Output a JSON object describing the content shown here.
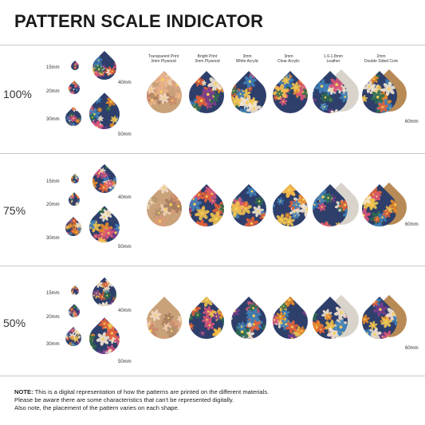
{
  "title": "PATTERN SCALE INDICATOR",
  "rows": [
    {
      "scale": "100%",
      "sizes": [
        "15mm",
        "20mm",
        "30mm",
        "40mm",
        "50mm"
      ],
      "big_size": "60mm"
    },
    {
      "scale": "75%",
      "sizes": [
        "15mm",
        "20mm",
        "30mm",
        "40mm",
        "50mm"
      ],
      "big_size": "60mm"
    },
    {
      "scale": "50%",
      "sizes": [
        "15mm",
        "20mm",
        "30mm",
        "40mm",
        "50mm"
      ],
      "big_size": "60mm"
    }
  ],
  "materials": [
    {
      "line1": "Transparent Print",
      "line2": "3mm Plywood"
    },
    {
      "line1": "Bright Print",
      "line2": "3mm Plywood"
    },
    {
      "line1": "3mm",
      "line2": "White Acrylic"
    },
    {
      "line1": "3mm",
      "line2": "Clear Acrylic"
    },
    {
      "line1": "1.6-1.8mm",
      "line2": "Leather"
    },
    {
      "line1": "2mm",
      "line2": "Double Sided Cork"
    }
  ],
  "note": {
    "label": "NOTE:",
    "line1": " This is a digital representation of how the patterns are printed on the different materials.",
    "line2": "Please be aware there are some characteristics that can't be represented digitally.",
    "line3": "Also note, the placement of the pattern varies on each shape."
  },
  "colors": {
    "divider": "#c9c9c9",
    "wood": "#c9a27a",
    "cork": "#b88a55",
    "leather": "#d8d4cc"
  }
}
